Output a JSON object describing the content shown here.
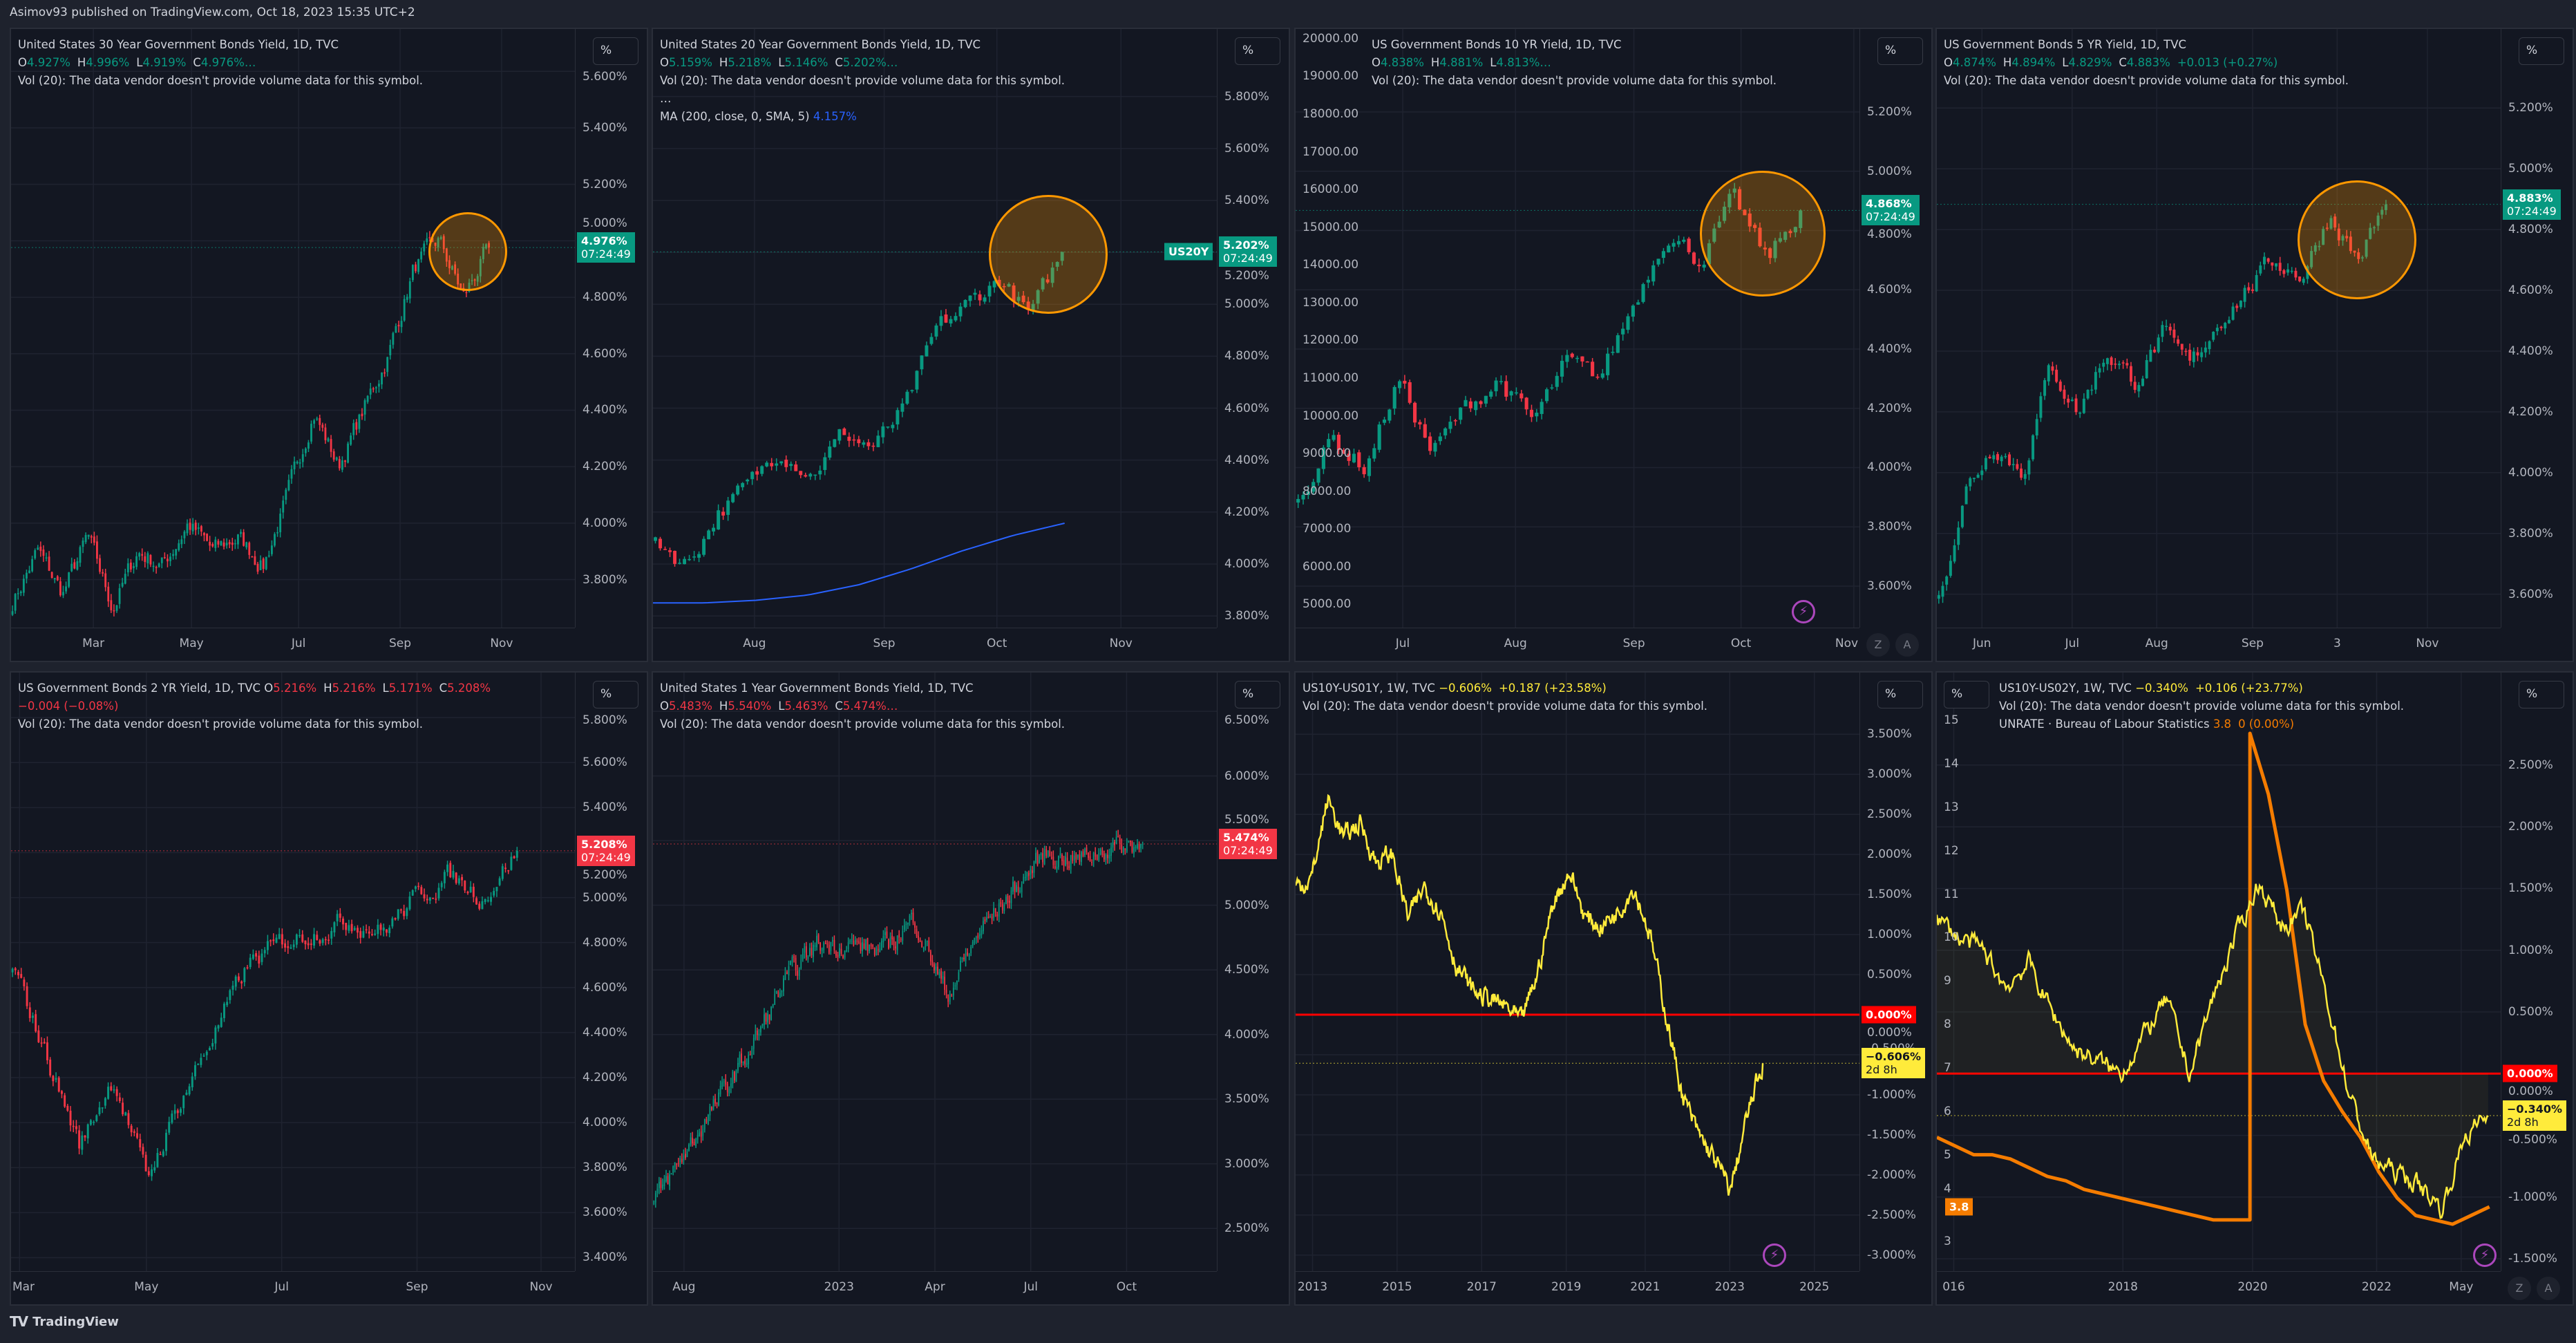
{
  "header": {
    "publisher": "Asimov93 published on TradingView.com, Oct 18, 2023 15:35 UTC+2"
  },
  "footer": {
    "brand": "TradingView",
    "logo_icon": "tradingview-logo"
  },
  "colors": {
    "up": "#089981",
    "down": "#f23645",
    "spread": "#ffeb3b",
    "unrate": "#f57c00",
    "zero_line": "#ff0000",
    "ma": "#2962ff",
    "highlight": "#ff9800"
  },
  "vol_text": "Vol (20): The data vendor doesn't provide volume data for this symbol.",
  "unit_label": "%",
  "panels": [
    {
      "title": "United States 30 Year Government Bonds Yield, 1D, TVC",
      "o": "4.927%",
      "h": "4.996%",
      "l": "4.919%",
      "c": "4.976%…",
      "type": "candle",
      "bars": 170,
      "endFrac": 0.85,
      "yRange": [
        3.63,
        5.75
      ],
      "yTicks": [
        "5.600%",
        "5.400%",
        "5.200%",
        "5.000%",
        "4.800%",
        "4.600%",
        "4.400%",
        "4.200%",
        "4.000%",
        "3.800%"
      ],
      "xTicks": [
        "Mar",
        "May",
        "Jul",
        "Sep",
        "Nov"
      ],
      "series": [
        3.72,
        3.9,
        3.75,
        3.95,
        3.7,
        3.9,
        3.85,
        4.0,
        3.9,
        3.95,
        3.85,
        4.1,
        4.4,
        4.2,
        4.4,
        4.6,
        4.9,
        5.0,
        4.8,
        4.976
      ],
      "priceLabels": [
        {
          "value": 4.976,
          "text": "4.976%",
          "sub": "07:24:49",
          "bg": "#089981",
          "fg": "#ffffff"
        }
      ]
    },
    {
      "title": "United States 20 Year Government Bonds Yield, 1D, TVC",
      "o": "5.159%",
      "h": "5.218%",
      "l": "5.146%",
      "c": "5.202%…",
      "more": "…",
      "ma_label": "MA (200, close, 0, SMA, 5)",
      "ma_value": "4.157%",
      "type": "candle",
      "bars": 85,
      "endFrac": 0.73,
      "yRange": [
        3.755,
        6.06
      ],
      "yTicks": [
        "5.800%",
        "5.600%",
        "5.400%",
        "5.200%",
        "5.000%",
        "4.800%",
        "4.600%",
        "4.400%",
        "4.200%",
        "4.000%",
        "3.800%"
      ],
      "xTicks": [
        "Aug",
        "Sep",
        "Oct",
        "Nov"
      ],
      "series": [
        4.1,
        4.0,
        4.2,
        4.3,
        4.45,
        4.35,
        4.5,
        4.45,
        4.6,
        4.9,
        5.0,
        5.1,
        4.95,
        5.202
      ],
      "ma": [
        3.85,
        3.85,
        3.86,
        3.88,
        3.92,
        3.98,
        4.05,
        4.11,
        4.157
      ],
      "symbolTag": "US20Y",
      "priceLabels": [
        {
          "value": 5.202,
          "text": "5.202%",
          "sub": "07:24:49",
          "bg": "#089981",
          "fg": "#ffffff"
        }
      ]
    },
    {
      "title": "US Government Bonds 10 YR Yield, 1D, TVC",
      "o": "4.838%",
      "h": "4.881%",
      "l": "4.813%…",
      "type": "candle",
      "bars": 100,
      "endFrac": 0.9,
      "yRange": [
        3.46,
        5.48
      ],
      "yTicks": [
        "5.200%",
        "5.000%",
        "4.800%",
        "4.600%",
        "4.400%",
        "4.200%",
        "4.000%",
        "3.800%",
        "3.600%"
      ],
      "leftRange": [
        4383,
        20254
      ],
      "leftTicks": [
        "20000.00",
        "19000.00",
        "18000.00",
        "17000.00",
        "16000.00",
        "15000.00",
        "14000.00",
        "13000.00",
        "12000.00",
        "11000.00",
        "10000.00",
        "9000.00",
        "8000.00",
        "7000.00",
        "6000.00",
        "5000.00"
      ],
      "xTicks": [
        "Jul",
        "Aug",
        "Sep",
        "Oct",
        "Nov"
      ],
      "series": [
        3.9,
        4.1,
        4.0,
        4.3,
        4.05,
        4.2,
        4.3,
        4.15,
        4.35,
        4.3,
        4.55,
        4.8,
        4.7,
        4.9,
        4.7,
        4.868
      ],
      "priceLabels": [
        {
          "value": 4.868,
          "text": "4.868%",
          "sub": "07:24:49",
          "bg": "#089981",
          "fg": "#ffffff"
        }
      ]
    },
    {
      "title": "US Government Bonds 5 YR Yield, 1D, TVC",
      "o": "4.874%",
      "h": "4.894%",
      "l": "4.829%",
      "c": "4.883%",
      "chg": "+0.013 (+0.27%)",
      "type": "candle",
      "bars": 115,
      "endFrac": 0.8,
      "yRange": [
        3.49,
        5.46
      ],
      "yTicks": [
        "5.200%",
        "5.000%",
        "4.800%",
        "4.600%",
        "4.400%",
        "4.200%",
        "4.000%",
        "3.800%",
        "3.600%"
      ],
      "xTicks": [
        "Jun",
        "Jul",
        "Aug",
        "Sep",
        "3",
        "Nov"
      ],
      "series": [
        3.6,
        3.95,
        4.1,
        4.0,
        4.35,
        4.2,
        4.4,
        4.3,
        4.45,
        4.35,
        4.5,
        4.6,
        4.7,
        4.65,
        4.85,
        4.7,
        4.883
      ],
      "priceLabels": [
        {
          "value": 4.883,
          "text": "4.883%",
          "sub": "07:24:49",
          "bg": "#089981",
          "fg": "#ffffff"
        }
      ]
    },
    {
      "title": "US Government Bonds 2 YR Yield, 1D, TVC",
      "o": "5.216%",
      "h": "5.216%",
      "l": "5.171%",
      "c": "5.208%",
      "chg": "−0.004 (−0.08%)",
      "type": "candle",
      "bars": 175,
      "endFrac": 0.9,
      "yRange": [
        3.34,
        6.0
      ],
      "yTicks": [
        "5.800%",
        "5.600%",
        "5.400%",
        "5.200%",
        "5.000%",
        "4.800%",
        "4.600%",
        "4.400%",
        "4.200%",
        "4.000%",
        "3.800%",
        "3.600%",
        "3.400%"
      ],
      "xTicks": [
        "Mar",
        "May",
        "Jul",
        "Sep",
        "Nov"
      ],
      "series": [
        4.7,
        4.3,
        3.9,
        4.2,
        3.75,
        4.1,
        4.4,
        4.7,
        4.8,
        4.85,
        4.9,
        4.85,
        5.0,
        5.1,
        5.0,
        5.208
      ],
      "priceLabels": [
        {
          "value": 5.208,
          "text": "5.208%",
          "sub": "07:24:49",
          "bg": "#f23645",
          "fg": "#ffffff"
        }
      ]
    },
    {
      "title": "United States 1 Year Government Bonds Yield, 1D, TVC",
      "o": "5.483%",
      "h": "5.540%",
      "l": "5.463%",
      "c": "5.474%…",
      "type": "candle",
      "bars": 280,
      "endFrac": 0.87,
      "yRange": [
        2.17,
        6.8
      ],
      "yTicks": [
        "6.500%",
        "6.000%",
        "5.500%",
        "5.000%",
        "4.500%",
        "4.000%",
        "3.500%",
        "3.000%",
        "2.500%"
      ],
      "xTicks": [
        "Aug",
        "2023",
        "Apr",
        "Jul",
        "Oct"
      ],
      "series": [
        2.7,
        3.1,
        3.5,
        3.9,
        4.4,
        4.7,
        4.7,
        4.65,
        4.9,
        4.3,
        4.8,
        5.1,
        5.4,
        5.35,
        5.45,
        5.474
      ],
      "priceLabels": [
        {
          "value": 5.474,
          "text": "5.474%",
          "sub": "07:24:49",
          "bg": "#f23645",
          "fg": "#ffffff"
        }
      ]
    },
    {
      "title": "US10Y-US01Y, 1W, TVC",
      "c": "−0.606%",
      "chg": "+0.187 (+23.58%)",
      "type": "line",
      "bars": 560,
      "endFrac": 0.83,
      "yRange": [
        -3.2,
        4.27
      ],
      "yTicks": [
        "3.500%",
        "3.000%",
        "2.500%",
        "2.000%",
        "1.500%",
        "1.000%",
        "0.500%",
        "0.000%",
        "-0.500%",
        "-1.000%",
        "-1.500%",
        "-2.000%",
        "-2.500%",
        "-3.000%"
      ],
      "xTicks": [
        "2013",
        "2015",
        "2017",
        "2019",
        "2021",
        "2023",
        "2025"
      ],
      "series": [
        1.6,
        1.7,
        2.7,
        2.2,
        2.4,
        1.9,
        2.0,
        1.2,
        1.6,
        1.3,
        0.6,
        0.3,
        0.2,
        0.1,
        -0.1,
        0.5,
        1.4,
        1.8,
        1.2,
        1.1,
        1.3,
        1.6,
        1.0,
        0.0,
        -1.0,
        -1.5,
        -1.8,
        -2.2,
        -1.3,
        -0.606
      ],
      "hlines": [
        {
          "value": 0,
          "color": "#ff0000"
        }
      ],
      "priceLabels": [
        {
          "value": 0,
          "text": "0.000%",
          "bg": "#ff0000",
          "fg": "#ffffff"
        },
        {
          "value": -0.606,
          "text": "−0.606%",
          "sub": "2d 8h",
          "bg": "#ffeb3b",
          "fg": "#131722"
        }
      ]
    },
    {
      "title": "US10Y-US02Y, 1W, TVC",
      "c": "−0.340%",
      "chg": "+0.106 (+23.77%)",
      "unrate_label": "UNRATE · Bureau of Labour Statistics",
      "unrate_value": "3.8",
      "unrate_chg": "0 (0.00%)",
      "type": "line",
      "bars": 440,
      "endFrac": 0.98,
      "fill": true,
      "yRange": [
        -1.6,
        3.25
      ],
      "yTicks": [
        "2.500%",
        "2.000%",
        "1.500%",
        "1.000%",
        "0.500%",
        "0.000%",
        "-0.500%",
        "-1.000%",
        "-1.500%"
      ],
      "leftRange": [
        2.32,
        16.1
      ],
      "leftTicks": [
        "15",
        "14",
        "13",
        "12",
        "11",
        "10",
        "9",
        "8",
        "7",
        "6",
        "5",
        "4",
        "3"
      ],
      "xTicks": [
        "016",
        "2018",
        "2020",
        "2022",
        "May"
      ],
      "series": [
        1.25,
        1.1,
        1.0,
        0.7,
        0.9,
        0.5,
        0.2,
        0.1,
        0.0,
        0.3,
        0.6,
        0.0,
        0.6,
        1.1,
        1.55,
        1.2,
        1.3,
        0.6,
        -0.2,
        -0.7,
        -0.8,
        -0.9,
        -1.1,
        -0.5,
        -0.34
      ],
      "series2": [
        5.4,
        5.2,
        5.0,
        5.0,
        4.9,
        4.7,
        4.5,
        4.4,
        4.2,
        4.1,
        4.0,
        3.9,
        3.8,
        3.7,
        3.6,
        3.5,
        3.5,
        14.7,
        13.3,
        11.1,
        8.0,
        6.7,
        6.0,
        5.4,
        4.6,
        4.0,
        3.6,
        3.5,
        3.4,
        3.6,
        3.8
      ],
      "hlines": [
        {
          "value": 0,
          "color": "#ff0000"
        }
      ],
      "leftLabel": {
        "value": 3.8,
        "text": "3.8",
        "bg": "#f57c00",
        "fg": "#ffffff"
      },
      "priceLabels": [
        {
          "value": 0,
          "text": "0.000%",
          "bg": "#ff0000",
          "fg": "#ffffff"
        },
        {
          "value": -0.34,
          "text": "−0.340%",
          "sub": "2d 8h",
          "bg": "#ffeb3b",
          "fg": "#131722"
        }
      ]
    }
  ]
}
